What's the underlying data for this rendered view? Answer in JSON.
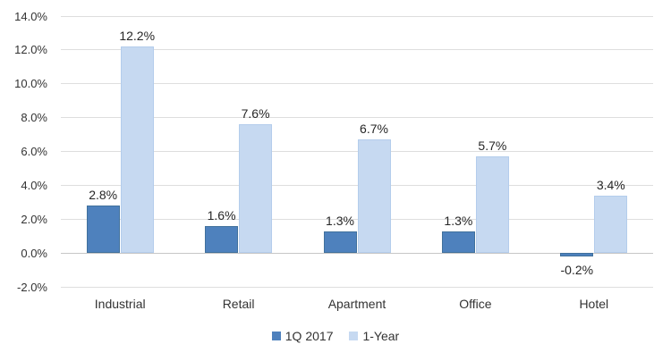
{
  "chart_data": {
    "type": "bar",
    "title": "",
    "xlabel": "",
    "ylabel": "",
    "categories": [
      "Industrial",
      "Retail",
      "Apartment",
      "Office",
      "Hotel"
    ],
    "series": [
      {
        "name": "1Q 2017",
        "color": "#4E81BD",
        "border_color": "#41719C",
        "values": [
          2.8,
          1.6,
          1.3,
          1.3,
          -0.2
        ],
        "labels": [
          "2.8%",
          "1.6%",
          "1.3%",
          "1.3%",
          "-0.2%"
        ]
      },
      {
        "name": "1-Year",
        "color": "#C6D9F1",
        "border_color": "#B4CDEC",
        "values": [
          12.2,
          7.6,
          6.7,
          5.7,
          3.4
        ],
        "labels": [
          "12.2%",
          "7.6%",
          "6.7%",
          "5.7%",
          "3.4%"
        ]
      }
    ],
    "y_axis": {
      "min": -2,
      "max": 14,
      "step": 2,
      "tick_labels": [
        "14.0%",
        "12.0%",
        "10.0%",
        "8.0%",
        "6.0%",
        "4.0%",
        "2.0%",
        "0.0%",
        "-2.0%"
      ]
    },
    "grid": true,
    "legend_position": "bottom"
  },
  "colors": {
    "gridline": "#DEDEDE",
    "zero_line": "#C6C6C6",
    "background": "#FFFFFF"
  }
}
